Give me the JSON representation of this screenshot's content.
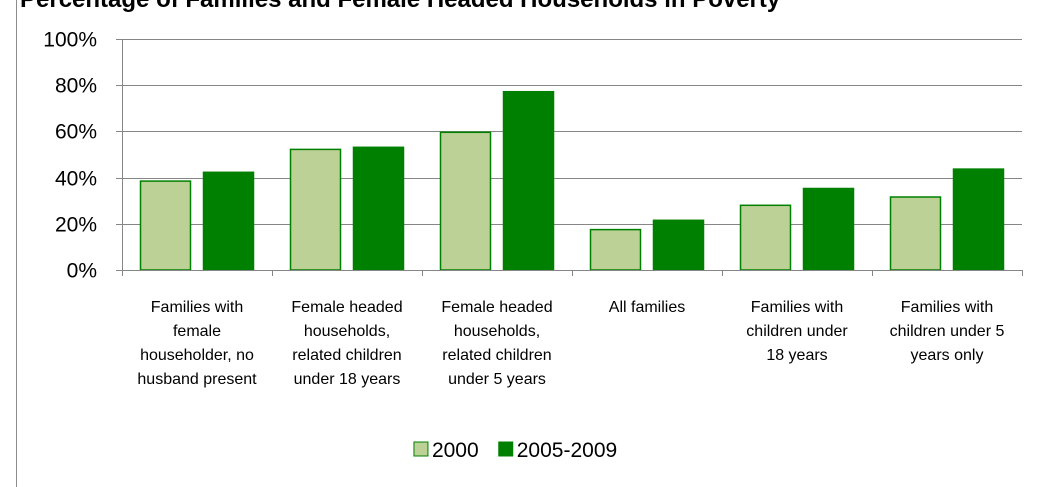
{
  "chart_data": {
    "type": "bar",
    "title": "Percentage of Families and Female Headed Households in Poverty",
    "categories": [
      [
        "Families with",
        "female",
        "householder, no",
        "husband present"
      ],
      [
        "Female headed",
        "households,",
        "related children",
        "under 18 years"
      ],
      [
        "Female headed",
        "households,",
        "related children",
        "under 5 years"
      ],
      [
        "All families"
      ],
      [
        "Families with",
        "children under",
        "18 years"
      ],
      [
        "Families with",
        "children under 5",
        "years only"
      ]
    ],
    "series": [
      {
        "name": "2000",
        "color": "#bcd196",
        "values": [
          38.5,
          52.2,
          59.6,
          17.5,
          28.0,
          31.6
        ]
      },
      {
        "name": "2005-2009",
        "color": "#008000",
        "values": [
          42.3,
          53.1,
          77.2,
          21.5,
          35.3,
          43.7
        ]
      }
    ],
    "yticks": [
      "0%",
      "20%",
      "40%",
      "60%",
      "80%",
      "100%"
    ],
    "ylim": [
      0,
      100
    ],
    "grid": true,
    "legend_position": "bottom"
  }
}
